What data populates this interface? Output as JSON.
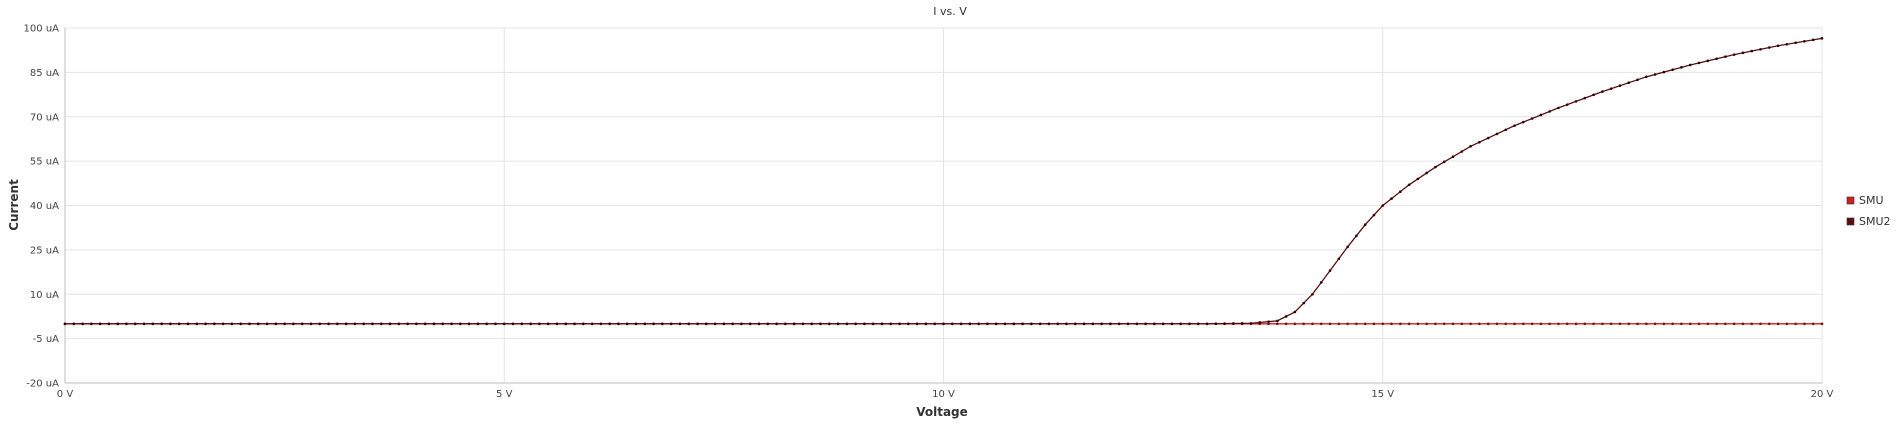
{
  "chart_data": {
    "type": "line",
    "title": "I vs. V",
    "xlabel": "Voltage",
    "ylabel": "Current",
    "xlim": [
      0,
      20
    ],
    "ylim": [
      -20,
      100
    ],
    "x_ticks": [
      0,
      5,
      10,
      15,
      20
    ],
    "x_tick_labels": [
      "0 V",
      "5 V",
      "10 V",
      "15 V",
      "20 V"
    ],
    "y_ticks": [
      -20,
      -5,
      10,
      25,
      40,
      55,
      70,
      85,
      100
    ],
    "y_tick_labels": [
      "-20 uA",
      "-5 uA",
      "10 uA",
      "25 uA",
      "40 uA",
      "55 uA",
      "70 uA",
      "85 uA",
      "100 uA"
    ],
    "grid": true,
    "legend_position": "right",
    "series": [
      {
        "name": "SMU",
        "color": "#cc1f1f",
        "x": [
          0,
          20
        ],
        "y": [
          0,
          0
        ]
      },
      {
        "name": "SMU2",
        "color": "#5a0f0f",
        "x": [
          0,
          13.0,
          13.5,
          13.8,
          14.0,
          14.2,
          14.4,
          14.6,
          14.8,
          15.0,
          15.3,
          15.6,
          16.0,
          16.5,
          17.0,
          17.5,
          18.0,
          18.5,
          19.0,
          19.5,
          20.0
        ],
        "y": [
          0,
          0,
          0.2,
          1.0,
          4.0,
          10.0,
          18.0,
          26.0,
          33.5,
          40.0,
          47.0,
          53.0,
          60.0,
          67.0,
          73.0,
          78.5,
          83.5,
          87.5,
          91.0,
          94.0,
          96.5
        ]
      }
    ]
  }
}
